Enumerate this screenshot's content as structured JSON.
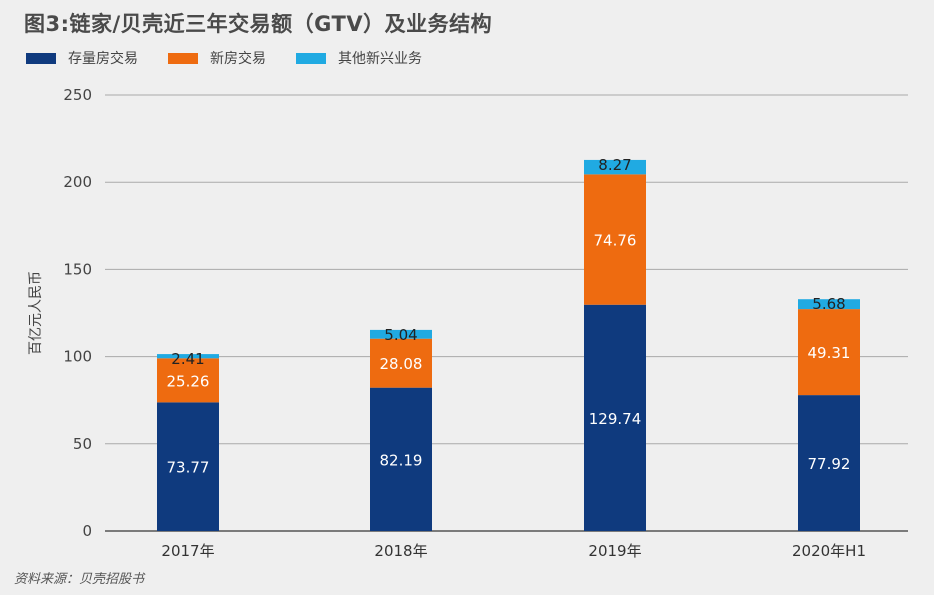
{
  "chart_data": {
    "type": "bar",
    "stacked": true,
    "title": "图3:链家/贝壳近三年交易额（GTV）及业务结构",
    "ylabel": "百亿元人民币",
    "xlabel": "",
    "ylim": [
      0,
      250
    ],
    "yticks": [
      0,
      50,
      100,
      150,
      200,
      250
    ],
    "grid": true,
    "legend_position": "top-left",
    "categories": [
      "2017年",
      "2018年",
      "2019年",
      "2020年H1"
    ],
    "series": [
      {
        "name": "存量房交易",
        "color": "#0f3a7e",
        "values": [
          73.77,
          82.19,
          129.74,
          77.92
        ]
      },
      {
        "name": "新房交易",
        "color": "#ee6b10",
        "values": [
          25.26,
          28.08,
          74.76,
          49.31
        ]
      },
      {
        "name": "其他新兴业务",
        "color": "#20aae2",
        "values": [
          2.41,
          5.04,
          8.27,
          5.68
        ]
      }
    ]
  },
  "source": "资料来源：贝壳招股书"
}
